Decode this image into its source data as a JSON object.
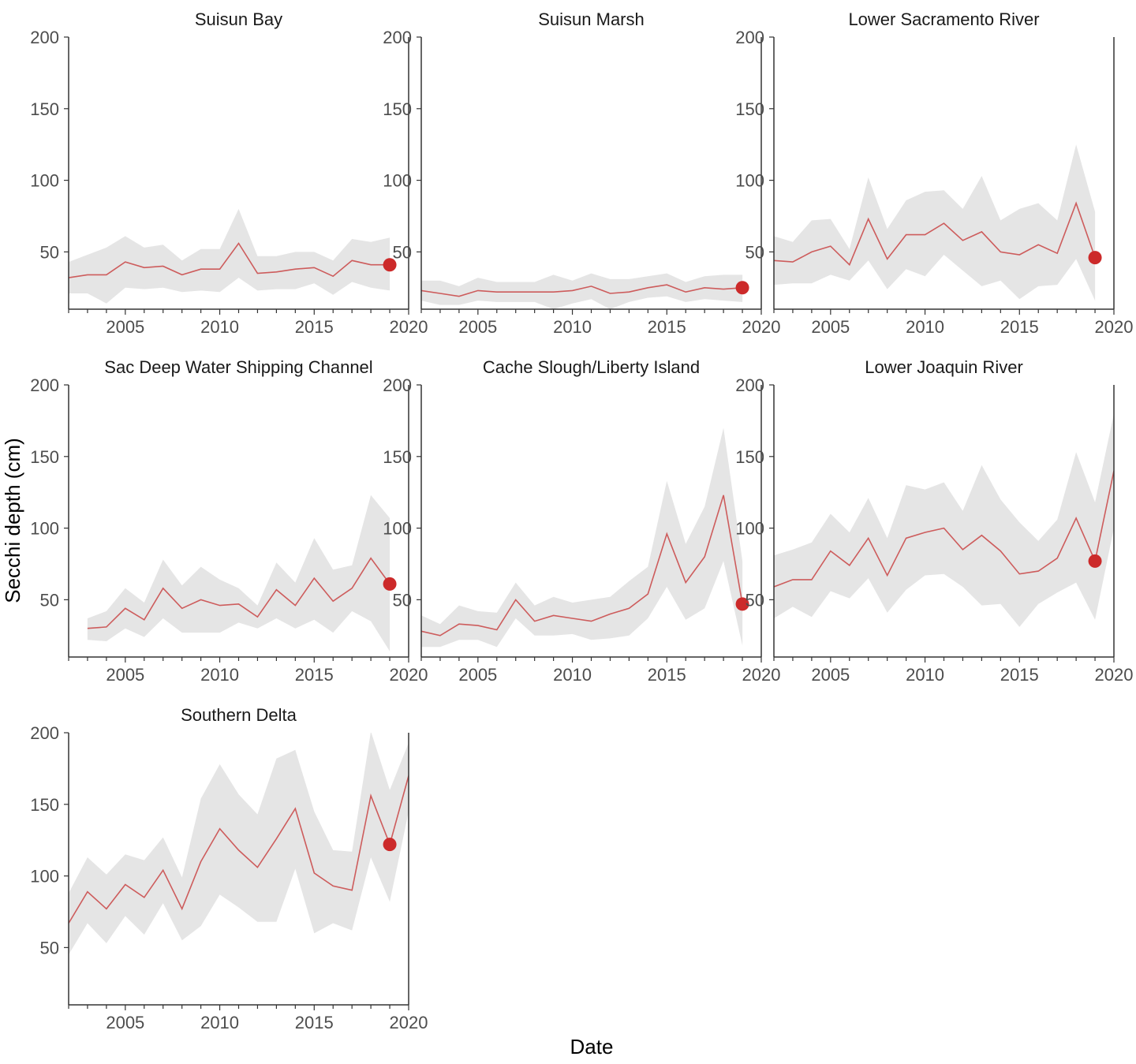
{
  "chart_data": {
    "type": "line",
    "xlabel": "Date",
    "ylabel": "Secchi depth (cm)",
    "xlim": [
      2002,
      2020
    ],
    "ylim": [
      10,
      200
    ],
    "x_ticks": [
      2005,
      2010,
      2015,
      2020
    ],
    "y_ticks": [
      50,
      100,
      150,
      200
    ],
    "grid": false,
    "colors": {
      "line": "#CD5C5C",
      "point": "#CC2A2A",
      "band": "#E5E5E5",
      "axis": "#333333"
    },
    "panels": [
      {
        "title": "Suisun Bay",
        "x": [
          2002,
          2003,
          2004,
          2005,
          2006,
          2007,
          2008,
          2009,
          2010,
          2011,
          2012,
          2013,
          2014,
          2015,
          2016,
          2017,
          2018,
          2019
        ],
        "mean": [
          32,
          34,
          34,
          43,
          39,
          40,
          34,
          38,
          38,
          56,
          35,
          36,
          38,
          39,
          33,
          44,
          41,
          41
        ],
        "lower": [
          21,
          21,
          14,
          25,
          24,
          25,
          22,
          23,
          22,
          32,
          23,
          24,
          24,
          28,
          20,
          29,
          25,
          23
        ],
        "upper": [
          43,
          48,
          53,
          61,
          53,
          55,
          44,
          52,
          52,
          80,
          47,
          47,
          50,
          50,
          44,
          59,
          57,
          60
        ],
        "highlight": {
          "x": 2019,
          "y": 41
        }
      },
      {
        "title": "Suisun Marsh",
        "x": [
          2002,
          2003,
          2004,
          2005,
          2006,
          2007,
          2008,
          2009,
          2010,
          2011,
          2012,
          2013,
          2014,
          2015,
          2016,
          2017,
          2018,
          2019
        ],
        "mean": [
          23,
          21,
          19,
          23,
          22,
          22,
          22,
          22,
          23,
          26,
          21,
          22,
          25,
          27,
          22,
          25,
          24,
          25
        ],
        "lower": [
          16,
          13,
          13,
          16,
          15,
          15,
          15,
          10,
          14,
          17,
          10,
          15,
          18,
          19,
          15,
          17,
          16,
          15
        ],
        "upper": [
          30,
          30,
          26,
          32,
          29,
          29,
          29,
          34,
          30,
          35,
          31,
          31,
          33,
          35,
          29,
          33,
          34,
          34
        ],
        "highlight": {
          "x": 2019,
          "y": 25
        }
      },
      {
        "title": "Lower Sacramento River",
        "x": [
          2002,
          2003,
          2004,
          2005,
          2006,
          2007,
          2008,
          2009,
          2010,
          2011,
          2012,
          2013,
          2014,
          2015,
          2016,
          2017,
          2018,
          2019
        ],
        "mean": [
          44,
          43,
          50,
          54,
          41,
          73,
          45,
          62,
          62,
          70,
          58,
          64,
          50,
          48,
          55,
          49,
          84,
          46
        ],
        "lower": [
          27,
          28,
          28,
          34,
          30,
          44,
          24,
          38,
          33,
          48,
          37,
          26,
          30,
          17,
          26,
          27,
          45,
          16
        ],
        "upper": [
          61,
          57,
          72,
          73,
          52,
          102,
          66,
          86,
          92,
          93,
          80,
          103,
          72,
          80,
          84,
          72,
          125,
          78
        ],
        "highlight": {
          "x": 2019,
          "y": 46
        }
      },
      {
        "title": "Sac Deep Water Shipping Channel",
        "x": [
          2003,
          2004,
          2005,
          2006,
          2007,
          2008,
          2009,
          2010,
          2011,
          2012,
          2013,
          2014,
          2015,
          2016,
          2017,
          2018,
          2019
        ],
        "mean": [
          30,
          31,
          44,
          36,
          58,
          44,
          50,
          46,
          47,
          38,
          57,
          46,
          65,
          49,
          58,
          79,
          61
        ],
        "lower": [
          22,
          21,
          30,
          24,
          37,
          27,
          27,
          27,
          34,
          30,
          37,
          30,
          36,
          27,
          42,
          35,
          14
        ],
        "upper": [
          37,
          42,
          58,
          48,
          78,
          60,
          73,
          64,
          58,
          46,
          76,
          62,
          93,
          71,
          74,
          123,
          107
        ],
        "highlight": {
          "x": 2019,
          "y": 61
        }
      },
      {
        "title": "Cache Slough/Liberty Island",
        "x": [
          2002,
          2003,
          2004,
          2005,
          2006,
          2007,
          2008,
          2009,
          2010,
          2011,
          2012,
          2013,
          2014,
          2015,
          2016,
          2017,
          2018,
          2019
        ],
        "mean": [
          28,
          25,
          33,
          32,
          29,
          50,
          35,
          39,
          37,
          35,
          40,
          44,
          54,
          96,
          62,
          80,
          123,
          47
        ],
        "lower": [
          17,
          17,
          22,
          22,
          17,
          37,
          25,
          25,
          26,
          22,
          23,
          25,
          37,
          59,
          36,
          44,
          77,
          18
        ],
        "upper": [
          39,
          33,
          46,
          42,
          41,
          62,
          46,
          52,
          48,
          50,
          52,
          63,
          73,
          133,
          89,
          115,
          170,
          77
        ],
        "highlight": {
          "x": 2019,
          "y": 47
        }
      },
      {
        "title": "Lower Joaquin River",
        "x": [
          2002,
          2003,
          2004,
          2005,
          2006,
          2007,
          2008,
          2009,
          2010,
          2011,
          2012,
          2013,
          2014,
          2015,
          2016,
          2017,
          2018,
          2019,
          2020
        ],
        "mean": [
          59,
          64,
          64,
          84,
          74,
          93,
          67,
          93,
          97,
          100,
          85,
          95,
          84,
          68,
          70,
          79,
          107,
          77,
          140
        ],
        "lower": [
          37,
          45,
          38,
          56,
          51,
          65,
          41,
          57,
          67,
          68,
          59,
          46,
          47,
          31,
          47,
          55,
          62,
          36,
          100
        ],
        "upper": [
          81,
          85,
          90,
          110,
          97,
          121,
          93,
          130,
          127,
          132,
          112,
          144,
          120,
          104,
          91,
          106,
          153,
          118,
          180
        ],
        "highlight": {
          "x": 2019,
          "y": 77
        }
      },
      {
        "title": "Southern Delta",
        "x": [
          2002,
          2003,
          2004,
          2005,
          2006,
          2007,
          2008,
          2009,
          2010,
          2011,
          2012,
          2013,
          2014,
          2015,
          2016,
          2017,
          2018,
          2019,
          2020
        ],
        "mean": [
          67,
          89,
          77,
          94,
          85,
          104,
          77,
          110,
          133,
          118,
          106,
          126,
          147,
          102,
          93,
          90,
          156,
          122,
          170
        ],
        "lower": [
          45,
          67,
          53,
          72,
          59,
          81,
          55,
          65,
          87,
          78,
          68,
          68,
          105,
          60,
          67,
          62,
          113,
          82,
          145
        ],
        "upper": [
          88,
          113,
          101,
          115,
          111,
          127,
          99,
          154,
          178,
          157,
          143,
          182,
          188,
          145,
          118,
          117,
          201,
          160,
          193
        ],
        "highlight": {
          "x": 2019,
          "y": 122
        }
      }
    ]
  }
}
